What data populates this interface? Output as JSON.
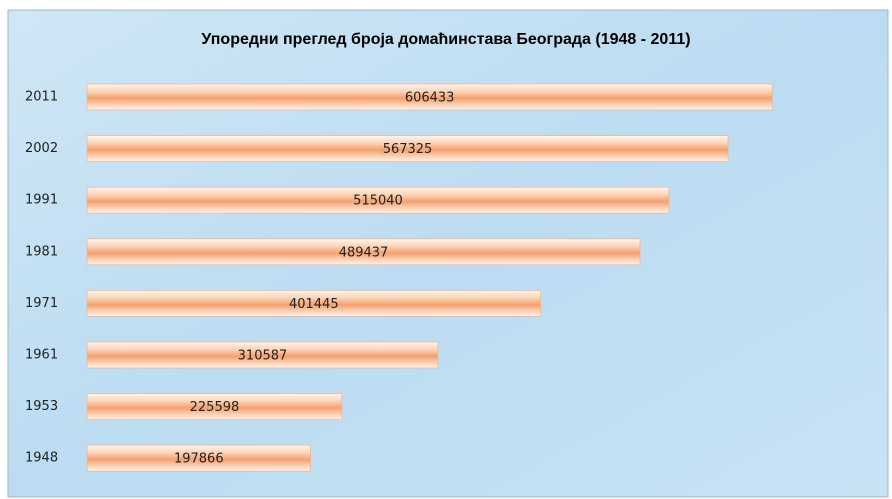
{
  "chart_data": {
    "type": "bar",
    "orientation": "horizontal",
    "title": "Упоредни преглед броја домаћинстава Београда (1948 - 2011)",
    "categories": [
      "2011",
      "2002",
      "1991",
      "1981",
      "1971",
      "1961",
      "1953",
      "1948"
    ],
    "values": [
      606433,
      567325,
      515040,
      489437,
      401445,
      310587,
      225598,
      197866
    ],
    "color": "#f4a070",
    "xlim": [
      0,
      700000
    ]
  }
}
